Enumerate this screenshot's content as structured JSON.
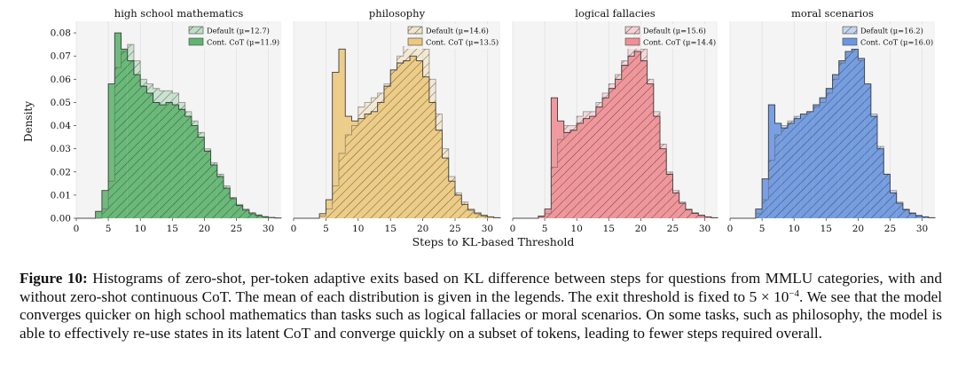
{
  "chart_data": [
    {
      "type": "bar",
      "title": "high school mathematics",
      "ylabel": "Density",
      "xlabel": "Steps to KL-based Threshold",
      "xticks": [
        0,
        5,
        10,
        15,
        20,
        25,
        30
      ],
      "yticks": [
        "0.00",
        "0.01",
        "0.02",
        "0.03",
        "0.04",
        "0.05",
        "0.06",
        "0.07",
        "0.08"
      ],
      "xlim": [
        0,
        32
      ],
      "ylim": [
        0,
        0.085
      ],
      "legend": "top-right",
      "color": "#5fb56f",
      "series": [
        {
          "name": "Default (μ=12.7)",
          "style": "hatched-outline",
          "values": [
            0.0,
            0.0,
            0.0,
            0.0,
            0.004,
            0.016,
            0.065,
            0.072,
            0.075,
            0.068,
            0.06,
            0.058,
            0.056,
            0.055,
            0.055,
            0.054,
            0.05,
            0.046,
            0.042,
            0.037,
            0.03,
            0.024,
            0.019,
            0.014,
            0.009,
            0.006,
            0.004,
            0.0025,
            0.0015,
            0.0008,
            0.0004,
            0.0002
          ]
        },
        {
          "name": "Cont. CoT (μ=11.9)",
          "style": "filled",
          "values": [
            0.0,
            0.0,
            0.0,
            0.003,
            0.012,
            0.058,
            0.08,
            0.073,
            0.068,
            0.062,
            0.057,
            0.054,
            0.05,
            0.049,
            0.05,
            0.049,
            0.047,
            0.044,
            0.04,
            0.035,
            0.029,
            0.023,
            0.018,
            0.013,
            0.0085,
            0.0055,
            0.0035,
            0.002,
            0.0012,
            0.0006,
            0.0003,
            0.0001
          ]
        }
      ]
    },
    {
      "type": "bar",
      "title": "philosophy",
      "xticks": [
        0,
        5,
        10,
        15,
        20,
        25,
        30
      ],
      "xlim": [
        0,
        32
      ],
      "ylim": [
        0,
        0.085
      ],
      "legend": "top-right",
      "color": "#ecc97e",
      "series": [
        {
          "name": "Default (μ=14.6)",
          "style": "hatched-outline",
          "values": [
            0.0,
            0.0,
            0.0,
            0.0,
            0.001,
            0.004,
            0.014,
            0.028,
            0.036,
            0.04,
            0.048,
            0.05,
            0.052,
            0.054,
            0.058,
            0.064,
            0.07,
            0.074,
            0.078,
            0.08,
            0.073,
            0.06,
            0.045,
            0.03,
            0.018,
            0.011,
            0.007,
            0.004,
            0.0025,
            0.0014,
            0.0007,
            0.0003
          ]
        },
        {
          "name": "Cont. CoT (μ=13.5)",
          "style": "filled",
          "values": [
            0.0,
            0.0,
            0.0,
            0.0,
            0.002,
            0.008,
            0.063,
            0.073,
            0.044,
            0.042,
            0.043,
            0.045,
            0.046,
            0.05,
            0.057,
            0.064,
            0.067,
            0.068,
            0.07,
            0.068,
            0.061,
            0.05,
            0.038,
            0.026,
            0.016,
            0.01,
            0.006,
            0.0035,
            0.002,
            0.0011,
            0.0005,
            0.0002
          ]
        }
      ]
    },
    {
      "type": "bar",
      "title": "logical fallacies",
      "xticks": [
        0,
        5,
        10,
        15,
        20,
        25,
        30
      ],
      "xlim": [
        0,
        32
      ],
      "ylim": [
        0,
        0.085
      ],
      "legend": "top-right",
      "color": "#f08f95",
      "series": [
        {
          "name": "Default (μ=15.6)",
          "style": "hatched-outline",
          "values": [
            0.0,
            0.0,
            0.0,
            0.0,
            0.0005,
            0.002,
            0.022,
            0.034,
            0.04,
            0.04,
            0.044,
            0.046,
            0.046,
            0.05,
            0.054,
            0.058,
            0.062,
            0.068,
            0.074,
            0.08,
            0.073,
            0.06,
            0.046,
            0.032,
            0.02,
            0.012,
            0.007,
            0.004,
            0.0025,
            0.0014,
            0.0007,
            0.0003
          ]
        },
        {
          "name": "Cont. CoT (μ=14.4)",
          "style": "filled",
          "values": [
            0.0,
            0.0,
            0.0,
            0.0,
            0.001,
            0.004,
            0.052,
            0.042,
            0.037,
            0.038,
            0.041,
            0.043,
            0.044,
            0.048,
            0.052,
            0.056,
            0.06,
            0.066,
            0.07,
            0.072,
            0.068,
            0.058,
            0.044,
            0.03,
            0.019,
            0.011,
            0.0065,
            0.0037,
            0.0021,
            0.0012,
            0.0006,
            0.0002
          ]
        }
      ]
    },
    {
      "type": "bar",
      "title": "moral scenarios",
      "xticks": [
        0,
        5,
        10,
        15,
        20,
        25,
        30
      ],
      "xlim": [
        0,
        32
      ],
      "ylim": [
        0,
        0.085
      ],
      "legend": "top-right",
      "color": "#6b97e0",
      "series": [
        {
          "name": "Default (μ=16.2)",
          "style": "hatched-outline",
          "values": [
            0.0,
            0.0,
            0.0,
            0.0,
            0.002,
            0.008,
            0.025,
            0.036,
            0.04,
            0.042,
            0.044,
            0.045,
            0.046,
            0.048,
            0.05,
            0.054,
            0.06,
            0.067,
            0.072,
            0.075,
            0.068,
            0.058,
            0.045,
            0.031,
            0.019,
            0.012,
            0.007,
            0.004,
            0.0024,
            0.0013,
            0.0007,
            0.0003
          ]
        },
        {
          "name": "Cont. CoT (μ=16.0)",
          "style": "filled",
          "values": [
            0.0,
            0.0,
            0.0,
            0.0,
            0.004,
            0.017,
            0.049,
            0.041,
            0.039,
            0.041,
            0.043,
            0.045,
            0.046,
            0.049,
            0.052,
            0.056,
            0.062,
            0.068,
            0.072,
            0.073,
            0.069,
            0.058,
            0.044,
            0.03,
            0.019,
            0.011,
            0.0065,
            0.0037,
            0.0021,
            0.0011,
            0.0006,
            0.0002
          ]
        }
      ]
    }
  ],
  "caption": {
    "label": "Figure 10:",
    "part1": " Histograms of zero-shot, per-token adaptive exits based on KL difference between steps for questions from MMLU categories, with and without zero-shot continuous CoT. The mean of each distribution is given in the legends. The exit threshold is fixed to 5 × 10",
    "exponent": "−4",
    "part2": ". We see that the model converges quicker on high school mathematics than tasks such as logical fallacies or moral scenarios. On some tasks, such as philosophy, the model is able to effectively re-use states in its latent CoT and converge quickly on a subset of tokens, leading to fewer steps required overall."
  }
}
